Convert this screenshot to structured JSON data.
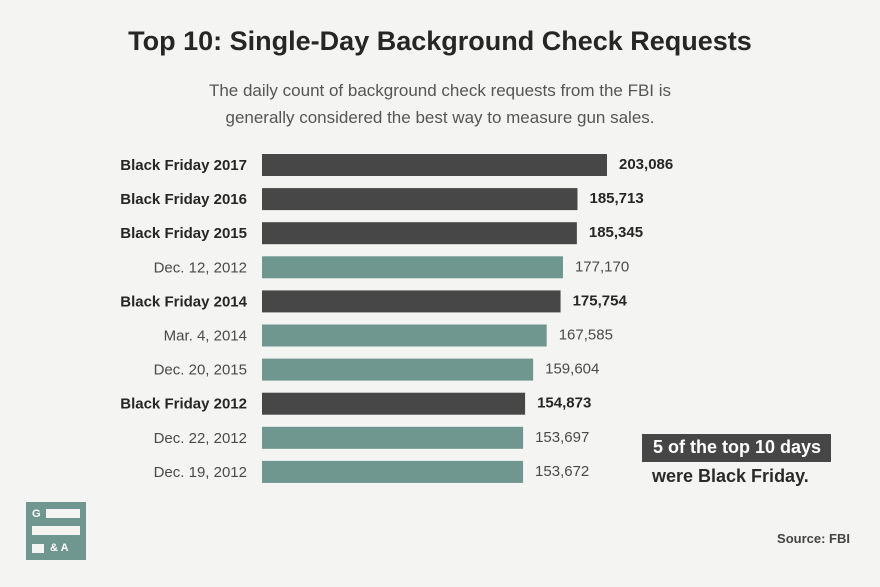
{
  "header": {
    "title": "Top 10: Single-Day Background Check Requests",
    "subtitle_line1": "The daily count of background check requests from the FBI is",
    "subtitle_line2": "generally considered the best way to measure gun sales."
  },
  "chart_data": {
    "type": "bar",
    "orientation": "horizontal",
    "title": "Top 10: Single-Day Background Check Requests",
    "categories": [
      "Black Friday 2017",
      "Black Friday 2016",
      "Black Friday 2015",
      "Dec. 12, 2012",
      "Black Friday 2014",
      "Mar. 4, 2014",
      "Dec. 20, 2015",
      "Black Friday 2012",
      "Dec. 22, 2012",
      "Dec. 19, 2012"
    ],
    "values": [
      203086,
      185713,
      185345,
      177170,
      175754,
      167585,
      159604,
      154873,
      153697,
      153672
    ],
    "value_labels": [
      "203,086",
      "185,713",
      "185,345",
      "177,170",
      "175,754",
      "167,585",
      "159,604",
      "154,873",
      "153,697",
      "153,672"
    ],
    "highlight": [
      true,
      true,
      true,
      false,
      true,
      false,
      false,
      true,
      false,
      false
    ],
    "colors": {
      "highlight": "#474747",
      "other": "#6f968f"
    },
    "grid": false
  },
  "callout": {
    "line1": "5 of the top 10 days",
    "line2": "were Black Friday."
  },
  "logo": {
    "top": "G",
    "bottom": "& A"
  },
  "source": "Source: FBI"
}
